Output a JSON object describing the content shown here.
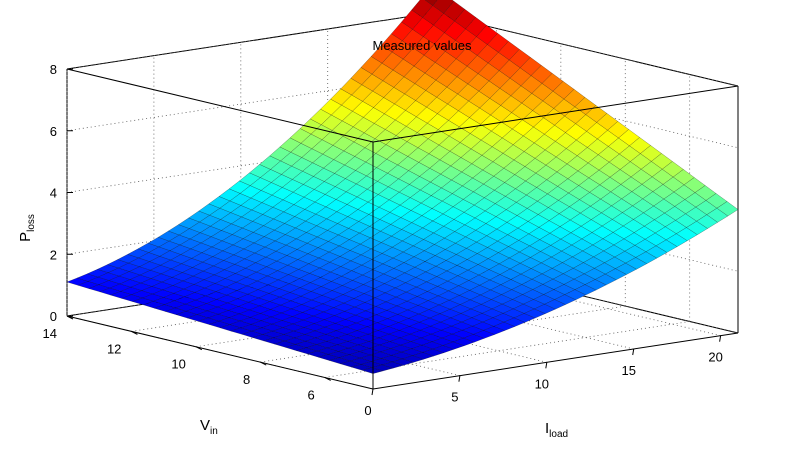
{
  "chart_data": {
    "type": "surface",
    "title": "Measured values",
    "xlabel": {
      "main": "I",
      "sub": "load"
    },
    "ylabel": {
      "main": "V",
      "sub": "in"
    },
    "zlabel": {
      "main": "P",
      "sub": "loss"
    },
    "xlim": [
      0,
      21
    ],
    "ylim": [
      4.5,
      14
    ],
    "zlim": [
      0,
      8
    ],
    "x_ticks": [
      "0",
      "5",
      "10",
      "15",
      "20"
    ],
    "y_ticks": [
      "6",
      "8",
      "10",
      "12",
      "14"
    ],
    "z_ticks": [
      "0",
      "2",
      "4",
      "6",
      "8"
    ],
    "grid": true,
    "colormap": "jet",
    "color_limits": [
      0,
      8.9
    ],
    "surface": {
      "x_range": [
        0,
        21
      ],
      "y_range": [
        4.5,
        14
      ],
      "corner_values": {
        "x0_ymin": 0.5,
        "x0_ymax": 1.1,
        "xmax_ymin": 4.0,
        "xmax_ymax": 8.9
      }
    }
  }
}
